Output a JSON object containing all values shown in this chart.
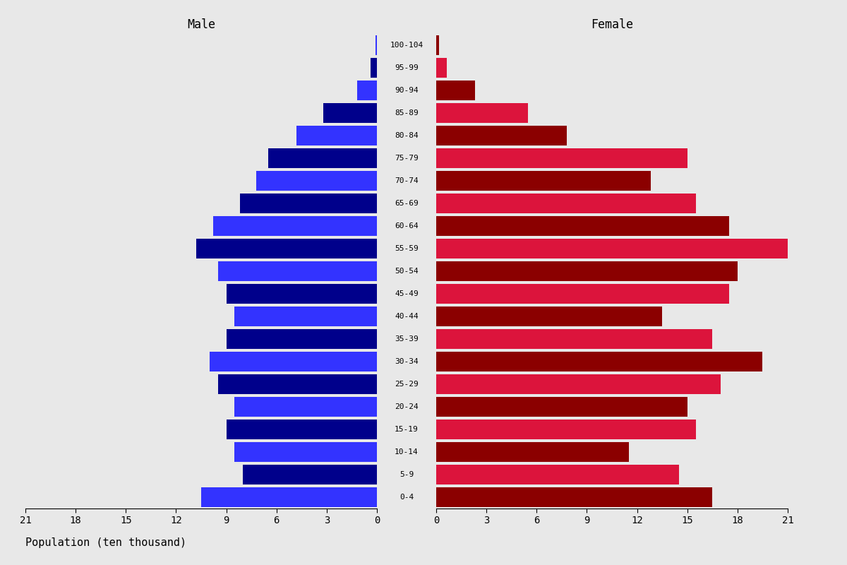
{
  "age_groups": [
    "0-4",
    "5-9",
    "10-14",
    "15-19",
    "20-24",
    "25-29",
    "30-34",
    "35-39",
    "40-44",
    "45-49",
    "50-54",
    "55-59",
    "60-64",
    "65-69",
    "70-74",
    "75-79",
    "80-84",
    "85-89",
    "90-94",
    "95-99",
    "100-104"
  ],
  "male_values": [
    10.5,
    8.0,
    8.5,
    9.0,
    8.5,
    9.5,
    10.0,
    9.0,
    8.5,
    9.0,
    9.5,
    10.8,
    9.8,
    8.2,
    7.2,
    6.5,
    4.8,
    3.2,
    1.2,
    0.4,
    0.1
  ],
  "female_values": [
    16.5,
    14.5,
    11.5,
    15.5,
    15.0,
    17.0,
    19.5,
    16.5,
    13.5,
    17.5,
    18.0,
    21.0,
    17.5,
    15.5,
    12.8,
    15.0,
    7.8,
    5.5,
    2.3,
    0.65,
    0.15
  ],
  "male_colors": [
    "#3333FF",
    "#00008B",
    "#3333FF",
    "#00008B",
    "#3333FF",
    "#00008B",
    "#3333FF",
    "#00008B",
    "#3333FF",
    "#00008B",
    "#3333FF",
    "#00008B",
    "#3333FF",
    "#00008B",
    "#3333FF",
    "#00008B",
    "#3333FF",
    "#00008B",
    "#3333FF",
    "#00008B",
    "#3333FF"
  ],
  "female_colors": [
    "#8B0000",
    "#DC143C",
    "#8B0000",
    "#DC143C",
    "#8B0000",
    "#DC143C",
    "#8B0000",
    "#DC143C",
    "#8B0000",
    "#DC143C",
    "#8B0000",
    "#DC143C",
    "#8B0000",
    "#DC143C",
    "#8B0000",
    "#DC143C",
    "#8B0000",
    "#DC143C",
    "#8B0000",
    "#DC143C",
    "#8B0000"
  ],
  "male_label": "Male",
  "female_label": "Female",
  "xlabel": "Population (ten thousand)",
  "xlim": 21,
  "background_color": "#E8E8E8",
  "tick_values": [
    0,
    3,
    6,
    9,
    12,
    15,
    18,
    21
  ],
  "bar_height": 0.85
}
